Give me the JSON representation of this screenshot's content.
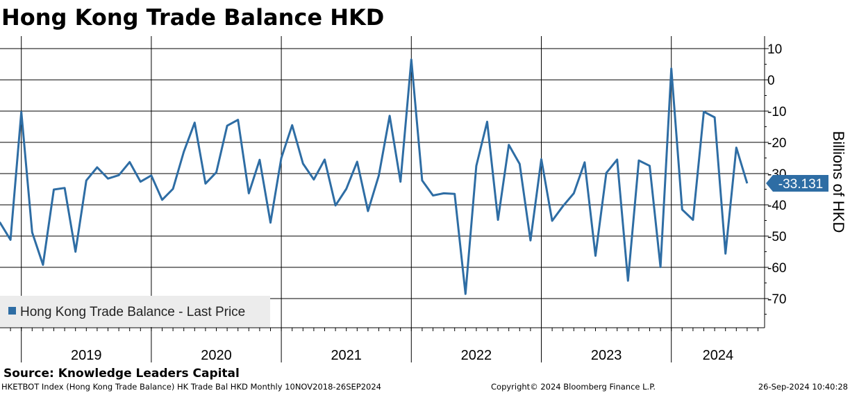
{
  "chart_data": {
    "type": "line",
    "title": "Hong Kong Trade Balance HKD",
    "ylabel": "Billions of HKD",
    "xlabel": "",
    "ylim": [
      -80,
      13
    ],
    "yticks": [
      10,
      0,
      -10,
      -20,
      -30,
      -40,
      -50,
      -60,
      -70
    ],
    "ytick_labels": [
      "10",
      "0",
      "-10",
      "-20",
      "-30",
      "-40",
      "-50",
      "-60",
      "-70"
    ],
    "year_labels": [
      "2019",
      "2020",
      "2021",
      "2022",
      "2023",
      "2024"
    ],
    "grid": true,
    "legend_position": "bottom-left",
    "line_color": "#2e6da4",
    "last_value": -33.131,
    "last_value_label": "-33.131",
    "series": [
      {
        "name": "Hong Kong Trade Balance - Last Price",
        "x": [
          "2018-11",
          "2018-12",
          "2019-01",
          "2019-02",
          "2019-03",
          "2019-04",
          "2019-05",
          "2019-06",
          "2019-07",
          "2019-08",
          "2019-09",
          "2019-10",
          "2019-11",
          "2019-12",
          "2020-01",
          "2020-02",
          "2020-03",
          "2020-04",
          "2020-05",
          "2020-06",
          "2020-07",
          "2020-08",
          "2020-09",
          "2020-10",
          "2020-11",
          "2020-12",
          "2021-01",
          "2021-02",
          "2021-03",
          "2021-04",
          "2021-05",
          "2021-06",
          "2021-07",
          "2021-08",
          "2021-09",
          "2021-10",
          "2021-11",
          "2021-12",
          "2022-01",
          "2022-02",
          "2022-03",
          "2022-04",
          "2022-05",
          "2022-06",
          "2022-07",
          "2022-08",
          "2022-09",
          "2022-10",
          "2022-11",
          "2022-12",
          "2023-01",
          "2023-02",
          "2023-03",
          "2023-04",
          "2023-05",
          "2023-06",
          "2023-07",
          "2023-08",
          "2023-09",
          "2023-10",
          "2023-11",
          "2023-12",
          "2024-01",
          "2024-02",
          "2024-03",
          "2024-04",
          "2024-05",
          "2024-06",
          "2024-07",
          "2024-08"
        ],
        "values": [
          -45.5,
          -51.2,
          -10.3,
          -48.8,
          -59.2,
          -35.1,
          -34.6,
          -55.0,
          -32.2,
          -28.0,
          -31.6,
          -30.5,
          -26.3,
          -32.6,
          -30.6,
          -38.4,
          -34.9,
          -23.0,
          -13.7,
          -33.2,
          -29.6,
          -14.7,
          -12.8,
          -36.3,
          -25.6,
          -45.7,
          -25.0,
          -14.5,
          -26.8,
          -31.9,
          -25.5,
          -40.2,
          -34.9,
          -26.2,
          -42.0,
          -30.6,
          -11.5,
          -32.6,
          6.5,
          -32.2,
          -37.0,
          -36.3,
          -36.5,
          -68.5,
          -27.5,
          -13.4,
          -44.8,
          -20.8,
          -26.9,
          -51.4,
          -25.4,
          -45.1,
          -40.4,
          -36.3,
          -26.4,
          -56.3,
          -29.8,
          -25.5,
          -64.3,
          -25.8,
          -27.5,
          -59.9,
          3.6,
          -41.5,
          -44.8,
          -10.2,
          -12.0,
          -55.6,
          -21.7,
          -33.131
        ]
      }
    ]
  },
  "footer": {
    "source": "Source: Knowledge Leaders Capital",
    "ticker": "HKETBOT Index (Hong Kong Trade Balance) HK Trade Bal HKD  Monthly 10NOV2018-26SEP2024",
    "copyright": "Copyright© 2024 Bloomberg Finance L.P.",
    "timestamp": "26-Sep-2024 10:40:28"
  }
}
